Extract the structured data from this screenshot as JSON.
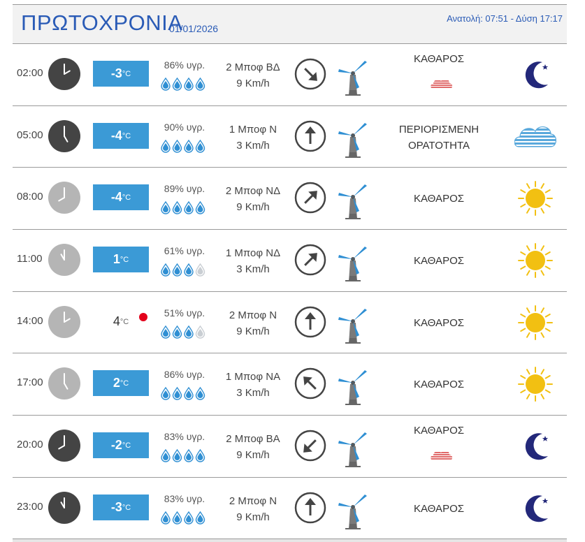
{
  "header": {
    "title": "ΠΡΩΤΟΧΡΟΝΙΑ",
    "date": "01/01/2026",
    "sun": "Ανατολή: 07:51  - Δύση 17:17"
  },
  "colors": {
    "accent": "#3b9ad6",
    "title_blue": "#2a5bb6",
    "dark_clock": "#444444",
    "light_clock": "#b5b5b5",
    "sun_yellow": "#f2c012",
    "moon_navy": "#23287a",
    "red_dot": "#e3001b"
  },
  "unit": "°C",
  "rows": [
    {
      "time": "02:00",
      "night": true,
      "temp": "-3",
      "temp_box": true,
      "humidity": "86% υγρ.",
      "drops": 4,
      "wind_force": "2 Μποφ ΒΔ",
      "wind_speed": "9 Km/h",
      "arrow_deg": 135,
      "condition": "ΚΑΘΑΡΟΣ",
      "condition2": "",
      "small_cloud": true,
      "icon": "moon-icon"
    },
    {
      "time": "05:00",
      "night": true,
      "temp": "-4",
      "temp_box": true,
      "humidity": "90% υγρ.",
      "drops": 4,
      "wind_force": "1 Μποφ Ν",
      "wind_speed": "3 Km/h",
      "arrow_deg": 0,
      "condition": "ΠΕΡΙΟΡΙΣΜΕΝΗ",
      "condition2": "ΟΡΑΤΟΤΗΤΑ",
      "small_cloud": false,
      "icon": "fog-cloud-icon"
    },
    {
      "time": "08:00",
      "night": false,
      "temp": "-4",
      "temp_box": true,
      "humidity": "89% υγρ.",
      "drops": 4,
      "wind_force": "2 Μποφ ΝΔ",
      "wind_speed": "9 Km/h",
      "arrow_deg": 45,
      "condition": "ΚΑΘΑΡΟΣ",
      "condition2": "",
      "small_cloud": false,
      "icon": "sun-icon"
    },
    {
      "time": "11:00",
      "night": false,
      "temp": "1",
      "temp_box": true,
      "humidity": "61% υγρ.",
      "drops": 3,
      "wind_force": "1 Μποφ ΝΔ",
      "wind_speed": "3 Km/h",
      "arrow_deg": 45,
      "condition": "ΚΑΘΑΡΟΣ",
      "condition2": "",
      "small_cloud": false,
      "icon": "sun-icon"
    },
    {
      "time": "14:00",
      "night": false,
      "temp": "4",
      "temp_box": false,
      "humidity": "51% υγρ.",
      "drops": 3,
      "wind_force": "2 Μποφ Ν",
      "wind_speed": "9 Km/h",
      "arrow_deg": 0,
      "condition": "ΚΑΘΑΡΟΣ",
      "condition2": "",
      "small_cloud": false,
      "icon": "sun-icon",
      "red_dot": true
    },
    {
      "time": "17:00",
      "night": false,
      "temp": "2",
      "temp_box": true,
      "humidity": "86% υγρ.",
      "drops": 4,
      "wind_force": "1 Μποφ ΝΑ",
      "wind_speed": "3 Km/h",
      "arrow_deg": -45,
      "condition": "ΚΑΘΑΡΟΣ",
      "condition2": "",
      "small_cloud": false,
      "icon": "sun-icon"
    },
    {
      "time": "20:00",
      "night": true,
      "temp": "-2",
      "temp_box": true,
      "humidity": "83% υγρ.",
      "drops": 4,
      "wind_force": "2 Μποφ ΒΑ",
      "wind_speed": "9 Km/h",
      "arrow_deg": -135,
      "condition": "ΚΑΘΑΡΟΣ",
      "condition2": "",
      "small_cloud": true,
      "icon": "moon-icon"
    },
    {
      "time": "23:00",
      "night": true,
      "temp": "-3",
      "temp_box": true,
      "humidity": "83% υγρ.",
      "drops": 4,
      "wind_force": "2 Μποφ Ν",
      "wind_speed": "9 Km/h",
      "arrow_deg": 0,
      "condition": "ΚΑΘΑΡΟΣ",
      "condition2": "",
      "small_cloud": false,
      "icon": "moon-icon"
    }
  ]
}
